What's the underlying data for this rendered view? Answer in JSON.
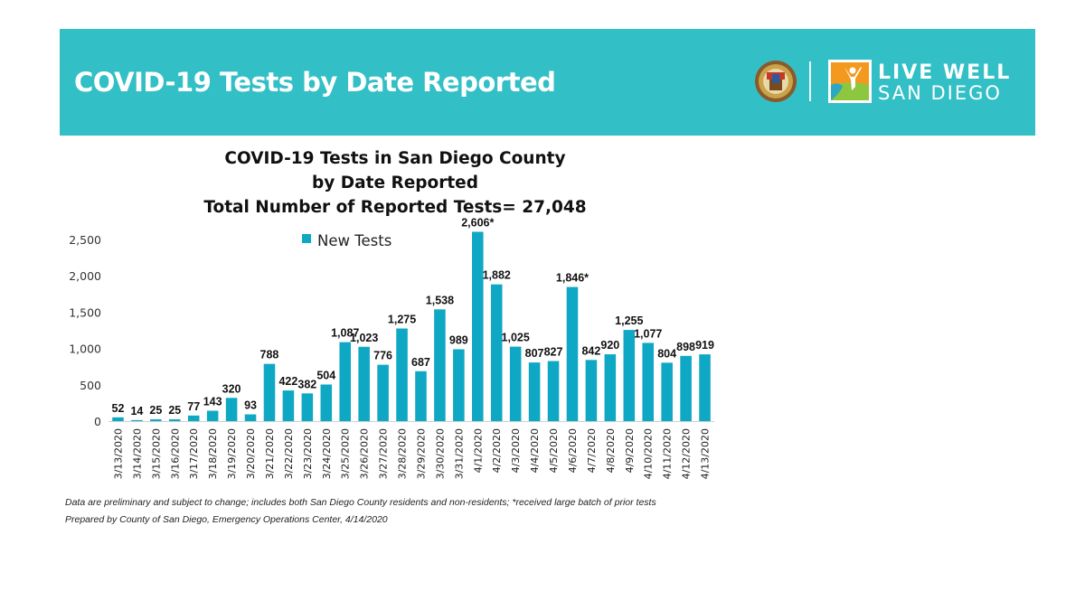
{
  "header": {
    "title": "COVID-19 Tests by Date Reported",
    "logo_seal": "county-seal-icon",
    "logo_brand_line1": "LIVE WELL",
    "logo_brand_line2": "SAN DIEGO",
    "banner_color": "#33bfc6"
  },
  "chart_data": {
    "type": "bar",
    "title_lines": [
      "COVID-19 Tests in San Diego County",
      "by Date Reported",
      "Total Number of Reported Tests= 27,048"
    ],
    "xlabel": "",
    "ylabel": "",
    "ylim": [
      0,
      2500
    ],
    "yticks": [
      0,
      500,
      1000,
      1500,
      2000,
      2500
    ],
    "ytick_labels": [
      "0",
      "500",
      "1,000",
      "1,500",
      "2,000",
      "2,500"
    ],
    "grid": false,
    "legend": {
      "position": "top-center",
      "entries": [
        "New Tests"
      ]
    },
    "bar_color": "#0fa8c4",
    "categories": [
      "3/13/2020",
      "3/14/2020",
      "3/15/2020",
      "3/16/2020",
      "3/17/2020",
      "3/18/2020",
      "3/19/2020",
      "3/20/2020",
      "3/21/2020",
      "3/22/2020",
      "3/23/2020",
      "3/24/2020",
      "3/25/2020",
      "3/26/2020",
      "3/27/2020",
      "3/28/2020",
      "3/29/2020",
      "3/30/2020",
      "3/31/2020",
      "4/1/2020",
      "4/2/2020",
      "4/3/2020",
      "4/4/2020",
      "4/5/2020",
      "4/6/2020",
      "4/7/2020",
      "4/8/2020",
      "4/9/2020",
      "4/10/2020",
      "4/11/2020",
      "4/12/2020",
      "4/13/2020"
    ],
    "series": [
      {
        "name": "New Tests",
        "values": [
          52,
          14,
          25,
          25,
          77,
          143,
          320,
          93,
          788,
          422,
          382,
          504,
          1087,
          1023,
          776,
          1275,
          687,
          1538,
          989,
          2606,
          1882,
          1025,
          807,
          827,
          1846,
          842,
          920,
          1255,
          1077,
          804,
          898,
          919
        ],
        "data_labels": [
          "52",
          "14",
          "25",
          "25",
          "77",
          "143",
          "320",
          "93",
          "788",
          "422",
          "382",
          "504",
          "1,087",
          "1,023",
          "776",
          "1,275",
          "687",
          "1,538",
          "989",
          "2,606*",
          "1,882",
          "1,025",
          "807",
          "827",
          "1,846*",
          "842",
          "920",
          "1,255",
          "1,077",
          "804",
          "898",
          "919"
        ]
      }
    ]
  },
  "footnotes": [
    "Data are preliminary and subject to change; includes both San Diego County residents and non-residents; *received large batch of prior tests",
    "Prepared by County of San Diego, Emergency Operations Center, 4/14/2020"
  ]
}
